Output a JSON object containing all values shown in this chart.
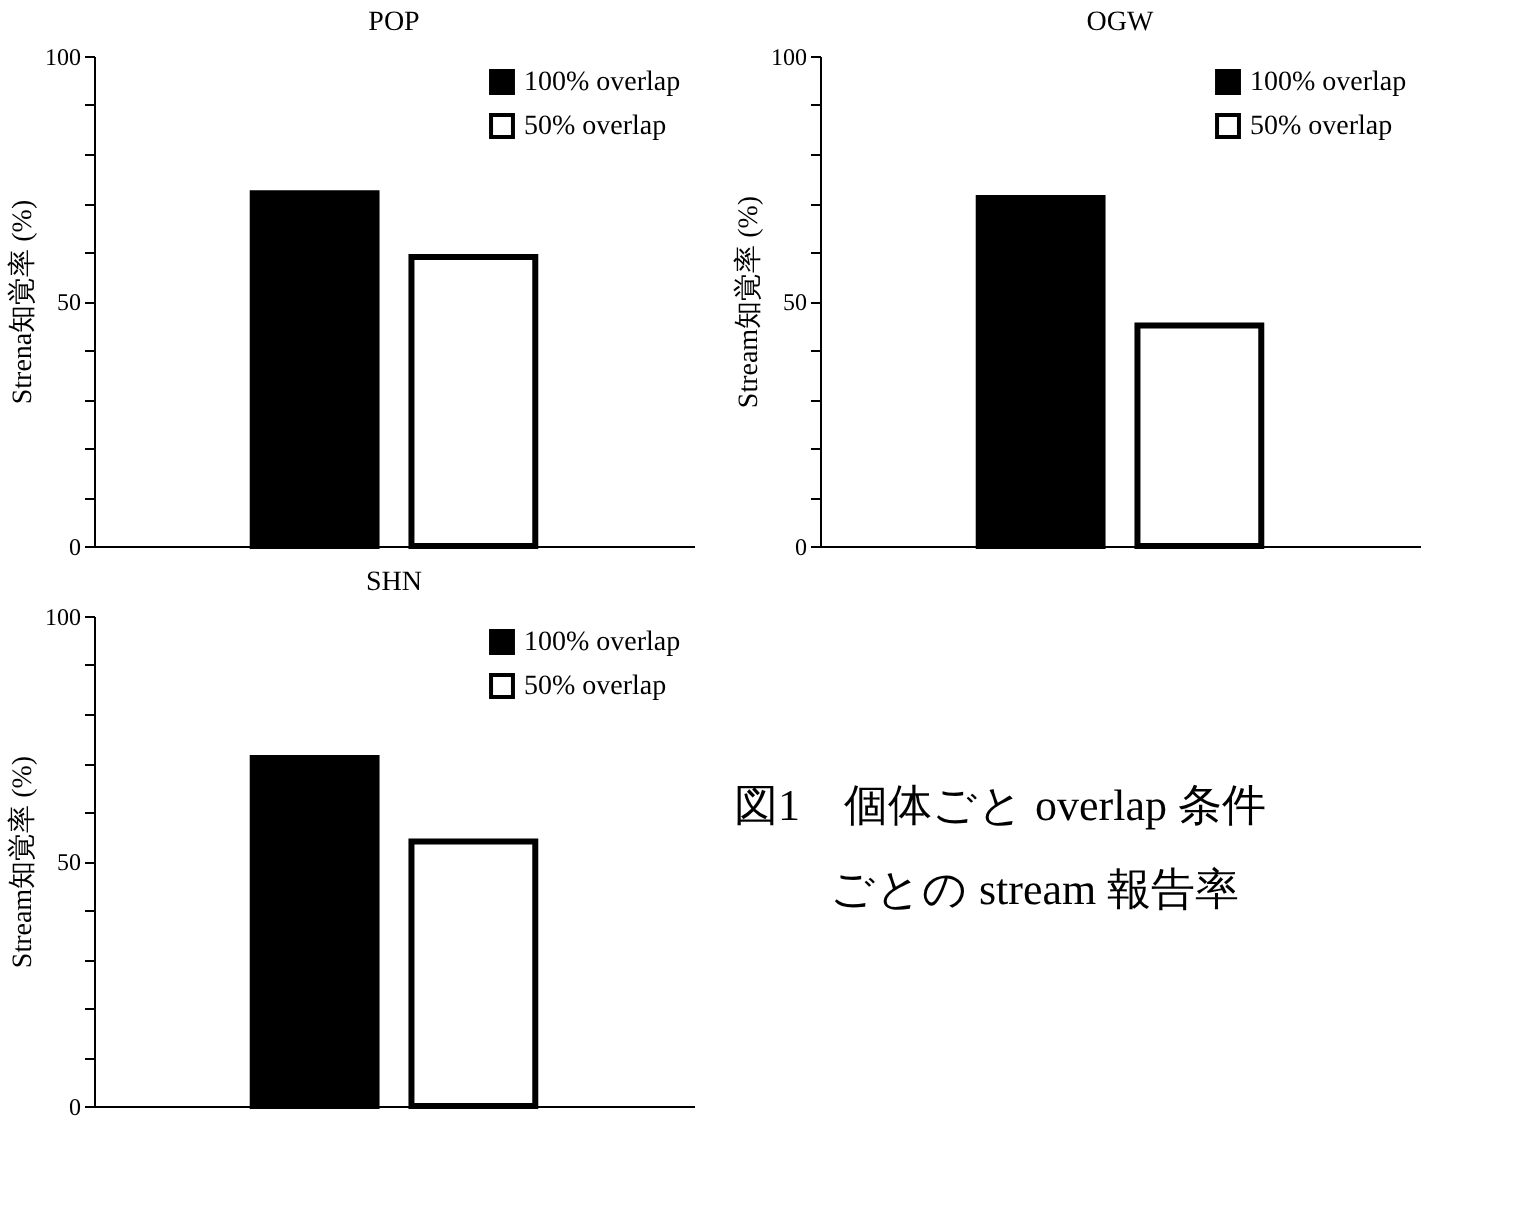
{
  "chart_data": [
    {
      "type": "bar",
      "title": "POP",
      "ylabel": "Strena知覚率 (%)",
      "categories": [
        null
      ],
      "series": [
        {
          "name": "100% overlap",
          "color": "#000000",
          "values": [
            72
          ]
        },
        {
          "name": "50% overlap",
          "color": "#ffffff",
          "values": [
            59
          ]
        }
      ],
      "ylim": [
        0,
        100
      ],
      "yticks": [
        0,
        {
          "value": 10,
          "label": null
        },
        {
          "value": 20,
          "label": null
        },
        {
          "value": 30,
          "label": null
        },
        {
          "value": 40,
          "label": null
        },
        50,
        {
          "value": 60,
          "label": null
        },
        {
          "value": 70,
          "label": null
        },
        {
          "value": 80,
          "label": null
        },
        {
          "value": 90,
          "label": null
        },
        100
      ],
      "tick_labels": "y",
      "legend": "top right",
      "grid": false
    },
    {
      "type": "bar",
      "title": "OGW",
      "ylabel": "Stream知覚率 (%)",
      "categories": [
        null
      ],
      "series": [
        {
          "name": "100% overlap",
          "color": "#000000",
          "values": [
            71
          ]
        },
        {
          "name": "50% overlap",
          "color": "#ffffff",
          "values": [
            45
          ]
        }
      ],
      "ylim": [
        0,
        100
      ],
      "yticks": [
        0,
        {
          "value": 10,
          "label": null
        },
        {
          "value": 20,
          "label": null
        },
        {
          "value": 30,
          "label": null
        },
        {
          "value": 40,
          "label": null
        },
        50,
        {
          "value": 60,
          "label": null
        },
        {
          "value": 70,
          "label": null
        },
        {
          "value": 80,
          "label": null
        },
        {
          "value": 90,
          "label": null
        },
        100
      ],
      "tick_labels": "y",
      "legend": "top right",
      "grid": false
    },
    {
      "type": "bar",
      "title": "SHN",
      "ylabel": "Stream知覚率 (%)",
      "categories": [
        null
      ],
      "series": [
        {
          "name": "100% overlap",
          "color": "#000000",
          "values": [
            71
          ]
        },
        {
          "name": "50% overlap",
          "color": "#ffffff",
          "values": [
            54
          ]
        }
      ],
      "ylim": [
        0,
        100
      ],
      "yticks": [
        0,
        {
          "value": 10,
          "label": null
        },
        {
          "value": 20,
          "label": null
        },
        {
          "value": 30,
          "label": null
        },
        {
          "value": 40,
          "label": null
        },
        50,
        {
          "value": 60,
          "label": null
        },
        {
          "value": 70,
          "label": null
        },
        {
          "value": 80,
          "label": null
        },
        {
          "value": 90,
          "label": null
        },
        100
      ],
      "tick_labels": "y",
      "legend": "top right",
      "grid": false
    },
    {
      "type": "other",
      "annotations": [
        "図1　個体ごと overlap 条件",
        "ごとの  stream  報告率"
      ]
    }
  ]
}
